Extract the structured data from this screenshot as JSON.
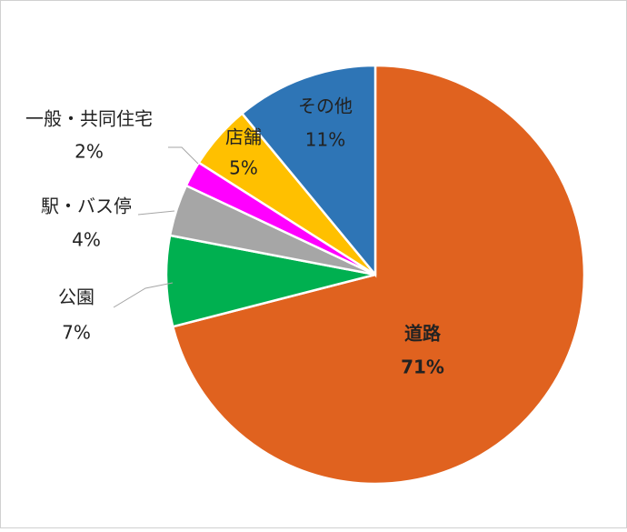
{
  "chart_data": {
    "type": "pie",
    "categories": [
      "道路",
      "公園",
      "駅・バス停",
      "一般・共同住宅",
      "店舗",
      "その他"
    ],
    "values": [
      71,
      7,
      4,
      2,
      5,
      11
    ],
    "value_labels": [
      "71%",
      "7%",
      "4%",
      "2%",
      "5%",
      "11%"
    ],
    "colors": [
      "#e0621f",
      "#00b050",
      "#a6a6a6",
      "#ff00ff",
      "#ffc000",
      "#2e75b6"
    ]
  }
}
